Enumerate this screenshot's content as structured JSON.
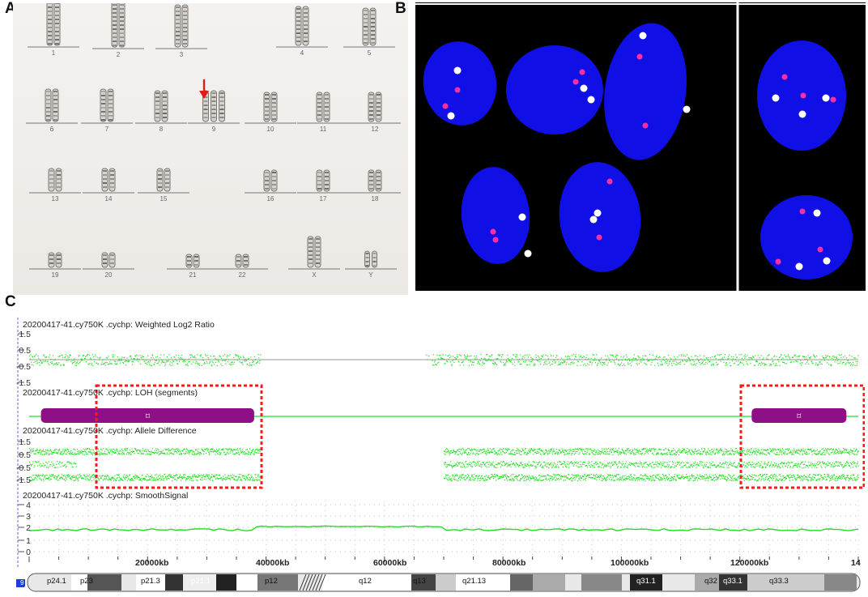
{
  "panel_labels": [
    "A",
    "B",
    "C"
  ],
  "karyotype": {
    "chromosomes": [
      "1",
      "2",
      "3",
      "4",
      "5",
      "6",
      "7",
      "8",
      "9",
      "10",
      "11",
      "12",
      "13",
      "14",
      "15",
      "16",
      "17",
      "18",
      "19",
      "20",
      "21",
      "22",
      "X",
      "Y"
    ],
    "highlight_chromosome": "9",
    "arrow_color": "#e11b1b"
  },
  "fish": {
    "nucleus_color": "#1010e6",
    "red_signal_color": "#ff2fa0",
    "green_signal_color": "#ffffff"
  },
  "array": {
    "tracks": [
      {
        "title": "20200417-41.cy750K .cychp: Weighted Log2 Ratio",
        "yticks": [
          "1.5",
          "0.5",
          "-0.5",
          "-1.5"
        ]
      },
      {
        "title": "20200417-41.cy750K .cychp: LOH (segments)",
        "yticks": []
      },
      {
        "title": "20200417-41.cy750K .cychp: Allele Difference",
        "yticks": [
          "1.5",
          "0.5",
          "-0.5",
          "-1.5"
        ]
      },
      {
        "title": "20200417-41.cy750K .cychp: SmoothSignal",
        "yticks": [
          "4",
          "3",
          "2",
          "1",
          "0"
        ]
      }
    ],
    "x_axis_labels": [
      "20000kb",
      "40000kb",
      "60000kb",
      "80000kb",
      "100000kb",
      "120000kb",
      "14"
    ],
    "chromosome_number": "9",
    "bands": [
      "p24.1",
      "p23",
      "p21.3",
      "p21.1",
      "p12",
      "q12",
      "q13",
      "q21.13",
      "q31.1",
      "q32",
      "q33.1",
      "q33.3"
    ],
    "colors": {
      "signal": "#22dd22",
      "loh_bar": "#8e0f86",
      "highlight_box": "#ff1a1a"
    },
    "loh_segments": [
      [
        2000,
        38000
      ],
      [
        122000,
        138000
      ]
    ]
  }
}
